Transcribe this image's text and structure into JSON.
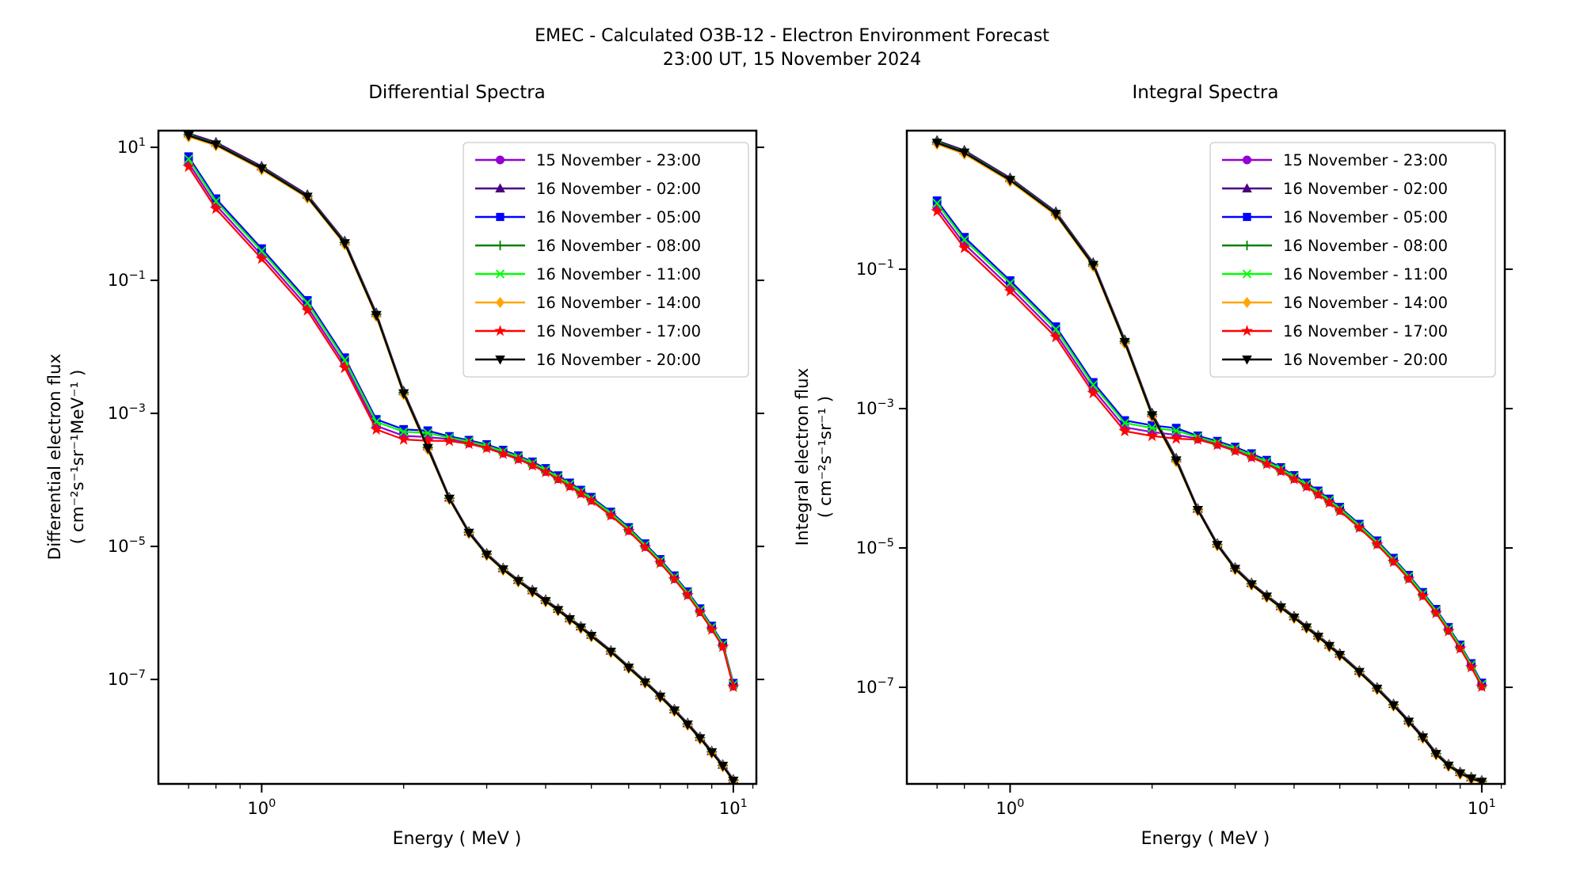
{
  "figure": {
    "suptitle_line1": "EMEC - Calculated O3B-12 - Electron Environment Forecast",
    "suptitle_line2": "23:00 UT, 15 November 2024"
  },
  "series_meta": [
    {
      "label": "15 November - 23:00",
      "color": "#9400D3",
      "marker": "circle"
    },
    {
      "label": "16 November - 02:00",
      "color": "#4B0082",
      "marker": "triangle-up"
    },
    {
      "label": "16 November - 05:00",
      "color": "#0000FF",
      "marker": "square"
    },
    {
      "label": "16 November - 08:00",
      "color": "#008000",
      "marker": "plus"
    },
    {
      "label": "16 November - 11:00",
      "color": "#00FF00",
      "marker": "x"
    },
    {
      "label": "16 November - 14:00",
      "color": "#FFA500",
      "marker": "diamond"
    },
    {
      "label": "16 November - 17:00",
      "color": "#FF0000",
      "marker": "star"
    },
    {
      "label": "16 November - 20:00",
      "color": "#000000",
      "marker": "triangle-down"
    }
  ],
  "chart_data": [
    {
      "type": "line",
      "title": "Differential Spectra",
      "xlabel": "Energy ( MeV )",
      "ylabel": "Differential electron flux",
      "ylabel_units": "( cm⁻²s⁻¹sr⁻¹MeV⁻¹ )",
      "xscale": "log",
      "yscale": "log",
      "grid": false,
      "legend_position": "upper right",
      "xlim": [
        0.604,
        11.19
      ],
      "ylim": [
        2.69e-09,
        17.8
      ],
      "x_major_ticks": [
        1,
        10
      ],
      "x_minor_ticks": [
        0.7,
        0.8,
        0.9,
        2,
        3,
        4,
        5,
        6,
        7,
        8,
        9,
        11
      ],
      "y_tick_exponents": [
        1,
        -1,
        -3,
        -5,
        -7
      ],
      "energies_mev": [
        0.7,
        0.8,
        1.0,
        1.25,
        1.5,
        1.75,
        2.0,
        2.25,
        2.5,
        2.75,
        3.0,
        3.25,
        3.5,
        3.75,
        4.0,
        4.25,
        4.5,
        4.75,
        5.0,
        5.5,
        6.0,
        6.5,
        7.0,
        7.5,
        8.0,
        8.5,
        9.0,
        9.5,
        10.0
      ],
      "series": [
        {
          "label": "15 November - 23:00",
          "values": [
            5.8,
            1.35,
            0.24,
            0.04,
            0.0055,
            0.00065,
            0.00046,
            0.00044,
            0.00041,
            0.00036,
            0.00031,
            0.000255,
            0.00021,
            0.00017,
            0.000135,
            0.000105,
            8.2e-05,
            6.4e-05,
            5e-05,
            3e-05,
            1.75e-05,
            1e-05,
            5.8e-06,
            3.3e-06,
            1.9e-06,
            1.05e-06,
            5.8e-07,
            3.2e-07,
            8e-08
          ]
        },
        {
          "label": "16 November - 02:00",
          "values": [
            16.2,
            11.9,
            5.18,
            1.94,
            0.389,
            0.0324,
            0.00216,
            0.000324,
            5.46e-05,
            1.68e-05,
            7.88e-06,
            4.73e-06,
            3.15e-06,
            2.21e-06,
            1.58e-06,
            1.16e-06,
            8.4e-07,
            6.3e-07,
            4.73e-07,
            2.73e-07,
            1.58e-07,
            9.45e-08,
            5.78e-08,
            3.57e-08,
            2.21e-08,
            1.37e-08,
            8.4e-09,
            5.25e-09,
            3.15e-09
          ]
        },
        {
          "label": "16 November - 05:00",
          "values": [
            7.25,
            1.69,
            0.3,
            0.05,
            0.00688,
            0.000813,
            0.000575,
            0.00055,
            0.000451,
            0.000396,
            0.000341,
            0.000281,
            0.000231,
            0.000187,
            0.000149,
            0.000116,
            9.02e-05,
            7.04e-05,
            5.5e-05,
            3.3e-05,
            1.93e-05,
            1.1e-05,
            6.38e-06,
            3.63e-06,
            2.09e-06,
            1.16e-06,
            6.38e-07,
            3.52e-07,
            8.8e-08
          ]
        },
        {
          "label": "16 November - 08:00",
          "values": [
            15.5,
            11.3,
            4.94,
            1.85,
            0.371,
            0.0309,
            0.00206,
            0.000309,
            5.3e-05,
            1.63e-05,
            7.65e-06,
            4.59e-06,
            3.06e-06,
            2.14e-06,
            1.53e-06,
            1.12e-06,
            8.16e-07,
            6.12e-07,
            4.59e-07,
            2.65e-07,
            1.53e-07,
            9.18e-08,
            5.61e-08,
            3.47e-08,
            2.14e-08,
            1.33e-08,
            8.16e-09,
            5.1e-09,
            3.06e-09
          ]
        },
        {
          "label": "16 November - 11:00",
          "values": [
            6.67,
            1.55,
            0.276,
            0.046,
            0.00633,
            0.000748,
            0.000529,
            0.000506,
            0.000431,
            0.000378,
            0.000326,
            0.000268,
            0.000221,
            0.000179,
            0.000142,
            0.00011,
            8.61e-05,
            6.72e-05,
            5.25e-05,
            3.15e-05,
            1.84e-05,
            1.05e-05,
            6.09e-06,
            3.47e-06,
            2e-06,
            1.1e-06,
            6.09e-07,
            3.36e-07,
            8.4e-08
          ]
        },
        {
          "label": "16 November - 14:00",
          "values": [
            14.4,
            10.6,
            4.61,
            1.73,
            0.346,
            0.0288,
            0.00192,
            0.000288,
            5.1e-05,
            1.57e-05,
            7.35e-06,
            4.41e-06,
            2.94e-06,
            2.06e-06,
            1.47e-06,
            1.08e-06,
            7.84e-07,
            5.88e-07,
            4.41e-07,
            2.55e-07,
            1.47e-07,
            8.82e-08,
            5.39e-08,
            3.33e-08,
            2.06e-08,
            1.27e-08,
            7.84e-09,
            4.9e-09,
            2.94e-09
          ]
        },
        {
          "label": "16 November - 17:00",
          "values": [
            5.1,
            1.19,
            0.211,
            0.0352,
            0.00484,
            0.000572,
            0.000405,
            0.000387,
            0.000385,
            0.000349,
            0.000301,
            0.000247,
            0.000204,
            0.000165,
            0.000131,
            0.000102,
            7.95e-05,
            6.21e-05,
            4.85e-05,
            2.91e-05,
            1.7e-05,
            9.7e-06,
            5.63e-06,
            3.2e-06,
            1.84e-06,
            1.02e-06,
            5.63e-07,
            3.1e-07,
            7.76e-08
          ]
        },
        {
          "label": "16 November - 20:00",
          "values": [
            15.0,
            11.0,
            4.8,
            1.8,
            0.36,
            0.03,
            0.002,
            0.0003,
            5.2e-05,
            1.6e-05,
            7.5e-06,
            4.5e-06,
            3e-06,
            2.1e-06,
            1.5e-06,
            1.1e-06,
            8e-07,
            6e-07,
            4.5e-07,
            2.6e-07,
            1.5e-07,
            9e-08,
            5.5e-08,
            3.4e-08,
            2.1e-08,
            1.3e-08,
            8e-09,
            5e-09,
            3e-09
          ]
        }
      ]
    },
    {
      "type": "line",
      "title": "Integral Spectra",
      "xlabel": "Energy ( MeV )",
      "ylabel": "Integral electron flux",
      "ylabel_units": "( cm⁻²s⁻¹sr⁻¹ )",
      "xscale": "log",
      "yscale": "log",
      "grid": false,
      "legend_position": "upper right",
      "xlim": [
        0.604,
        11.19
      ],
      "ylim": [
        4.11e-09,
        9.75
      ],
      "x_major_ticks": [
        1,
        10
      ],
      "x_minor_ticks": [
        0.7,
        0.8,
        0.9,
        2,
        3,
        4,
        5,
        6,
        7,
        8,
        9,
        11
      ],
      "y_tick_exponents": [
        -1,
        -3,
        -5,
        -7
      ],
      "energies_mev": [
        0.7,
        0.8,
        1.0,
        1.25,
        1.5,
        1.75,
        2.0,
        2.25,
        2.5,
        2.75,
        3.0,
        3.25,
        3.5,
        3.75,
        4.0,
        4.25,
        4.5,
        4.75,
        5.0,
        5.5,
        6.0,
        6.5,
        7.0,
        7.5,
        8.0,
        8.5,
        9.0,
        9.5,
        10.0
      ],
      "series": [
        {
          "label": "15 November - 23:00",
          "values": [
            0.77,
            0.23,
            0.055,
            0.012,
            0.0019,
            0.00054,
            0.00046,
            0.00042,
            0.00037,
            0.00031,
            0.000255,
            0.000205,
            0.000165,
            0.00013,
            0.0001,
            7.8e-05,
            6e-05,
            4.6e-05,
            3.5e-05,
            2e-05,
            1.15e-05,
            6.5e-06,
            3.7e-06,
            2.1e-06,
            1.2e-06,
            6.6e-07,
            3.7e-07,
            2e-07,
            1.05e-07
          ]
        },
        {
          "label": "16 November - 02:00",
          "values": [
            7.02,
            5.08,
            2.05,
            0.67,
            0.124,
            0.00972,
            0.000864,
            0.000194,
            3.68e-05,
            1.16e-05,
            5.25e-06,
            3.15e-06,
            2.1e-06,
            1.47e-06,
            1.05e-06,
            7.56e-07,
            5.57e-07,
            4.1e-07,
            3.05e-07,
            1.73e-07,
            9.98e-08,
            5.78e-08,
            3.36e-08,
            2e-08,
            1.16e-08,
            7.88e-09,
            6.09e-09,
            5.15e-09,
            4.62e-09
          ]
        },
        {
          "label": "16 November - 05:00",
          "values": [
            0.963,
            0.288,
            0.0688,
            0.015,
            0.00238,
            0.000675,
            0.000575,
            0.000525,
            0.000407,
            0.000341,
            0.000281,
            0.000226,
            0.000182,
            0.000143,
            0.00011,
            8.58e-05,
            6.6e-05,
            5.06e-05,
            3.85e-05,
            2.2e-05,
            1.27e-05,
            7.15e-06,
            4.07e-06,
            2.31e-06,
            1.32e-06,
            7.26e-07,
            4.07e-07,
            2.2e-07,
            1.16e-07
          ]
        },
        {
          "label": "16 November - 08:00",
          "values": [
            6.7,
            4.84,
            1.96,
            0.639,
            0.118,
            0.00927,
            0.000824,
            0.000185,
            3.57e-05,
            1.12e-05,
            5.1e-06,
            3.06e-06,
            2.04e-06,
            1.43e-06,
            1.02e-06,
            7.34e-07,
            5.41e-07,
            3.98e-07,
            2.96e-07,
            1.68e-07,
            9.69e-08,
            5.61e-08,
            3.26e-08,
            1.94e-08,
            1.12e-08,
            7.65e-09,
            5.92e-09,
            5e-09,
            4.49e-09
          ]
        },
        {
          "label": "16 November - 11:00",
          "values": [
            0.886,
            0.265,
            0.0633,
            0.0138,
            0.00219,
            0.000621,
            0.000529,
            0.000483,
            0.000389,
            0.000326,
            0.000268,
            0.000215,
            0.000173,
            0.000137,
            0.000105,
            8.19e-05,
            6.3e-05,
            4.83e-05,
            3.68e-05,
            2.1e-05,
            1.21e-05,
            6.83e-06,
            3.89e-06,
            2.21e-06,
            1.26e-06,
            6.93e-07,
            3.89e-07,
            2.1e-07,
            1.1e-07
          ]
        },
        {
          "label": "16 November - 14:00",
          "values": [
            6.24,
            4.51,
            1.82,
            0.595,
            0.11,
            0.00864,
            0.000768,
            0.000173,
            3.43e-05,
            1.08e-05,
            4.9e-06,
            2.94e-06,
            1.96e-06,
            1.37e-06,
            9.8e-07,
            7.06e-07,
            5.19e-07,
            3.82e-07,
            2.84e-07,
            1.62e-07,
            9.31e-08,
            5.39e-08,
            3.14e-08,
            1.86e-08,
            1.08e-08,
            7.35e-09,
            5.68e-09,
            4.8e-09,
            4.31e-09
          ]
        },
        {
          "label": "16 November - 17:00",
          "values": [
            0.678,
            0.202,
            0.0484,
            0.0106,
            0.00167,
            0.000475,
            0.000405,
            0.00037,
            0.000359,
            0.000301,
            0.000247,
            0.000199,
            0.00016,
            0.000126,
            9.7e-05,
            7.57e-05,
            5.82e-05,
            4.46e-05,
            3.4e-05,
            1.94e-05,
            1.12e-05,
            6.31e-06,
            3.59e-06,
            2.04e-06,
            1.16e-06,
            6.4e-07,
            3.59e-07,
            1.94e-07,
            1.02e-07
          ]
        },
        {
          "label": "16 November - 20:00",
          "values": [
            6.5,
            4.7,
            1.9,
            0.62,
            0.115,
            0.009,
            0.0008,
            0.00018,
            3.5e-05,
            1.1e-05,
            5e-06,
            3e-06,
            2e-06,
            1.4e-06,
            1e-06,
            7.2e-07,
            5.3e-07,
            3.9e-07,
            2.9e-07,
            1.65e-07,
            9.5e-08,
            5.5e-08,
            3.2e-08,
            1.9e-08,
            1.1e-08,
            7.5e-09,
            5.8e-09,
            4.9e-09,
            4.4e-09
          ]
        }
      ]
    }
  ]
}
